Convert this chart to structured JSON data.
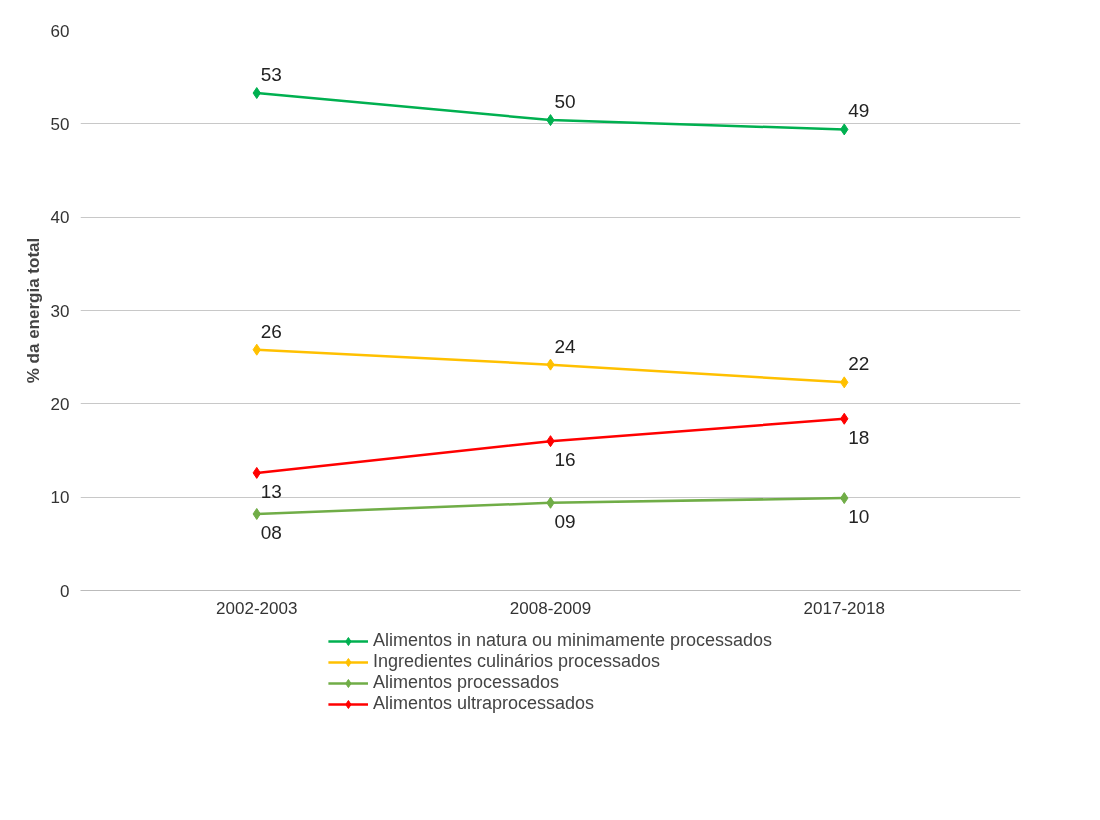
{
  "chart_data": {
    "type": "line",
    "ylabel": "% da energia total",
    "categories": [
      "2002-2003",
      "2008-2009",
      "2017-2018"
    ],
    "ylim": [
      0,
      60
    ],
    "yticks": [
      0,
      10,
      20,
      30,
      40,
      50,
      60
    ],
    "grid": "y",
    "legend": "bottom",
    "marker": "diamond",
    "line_style": "solid",
    "series": [
      {
        "name": "Alimentos in natura ou minimamente processados",
        "color": "#00b050",
        "values": [
          53.3,
          50.4,
          49.4
        ],
        "value_labels": [
          "53",
          "50",
          "49"
        ]
      },
      {
        "name": "Ingredientes culinários processados",
        "color": "#ffc000",
        "values": [
          25.8,
          24.2,
          22.3
        ],
        "value_labels": [
          "26",
          "24",
          "22"
        ]
      },
      {
        "name": "Alimentos processados",
        "color": "#70ad47",
        "values": [
          8.2,
          9.4,
          9.9
        ],
        "value_labels": [
          "08",
          "09",
          "10"
        ]
      },
      {
        "name": "Alimentos ultraprocessados",
        "color": "#ff0000",
        "values": [
          12.6,
          16.0,
          18.4
        ],
        "value_labels": [
          "13",
          "16",
          "18"
        ]
      }
    ]
  }
}
